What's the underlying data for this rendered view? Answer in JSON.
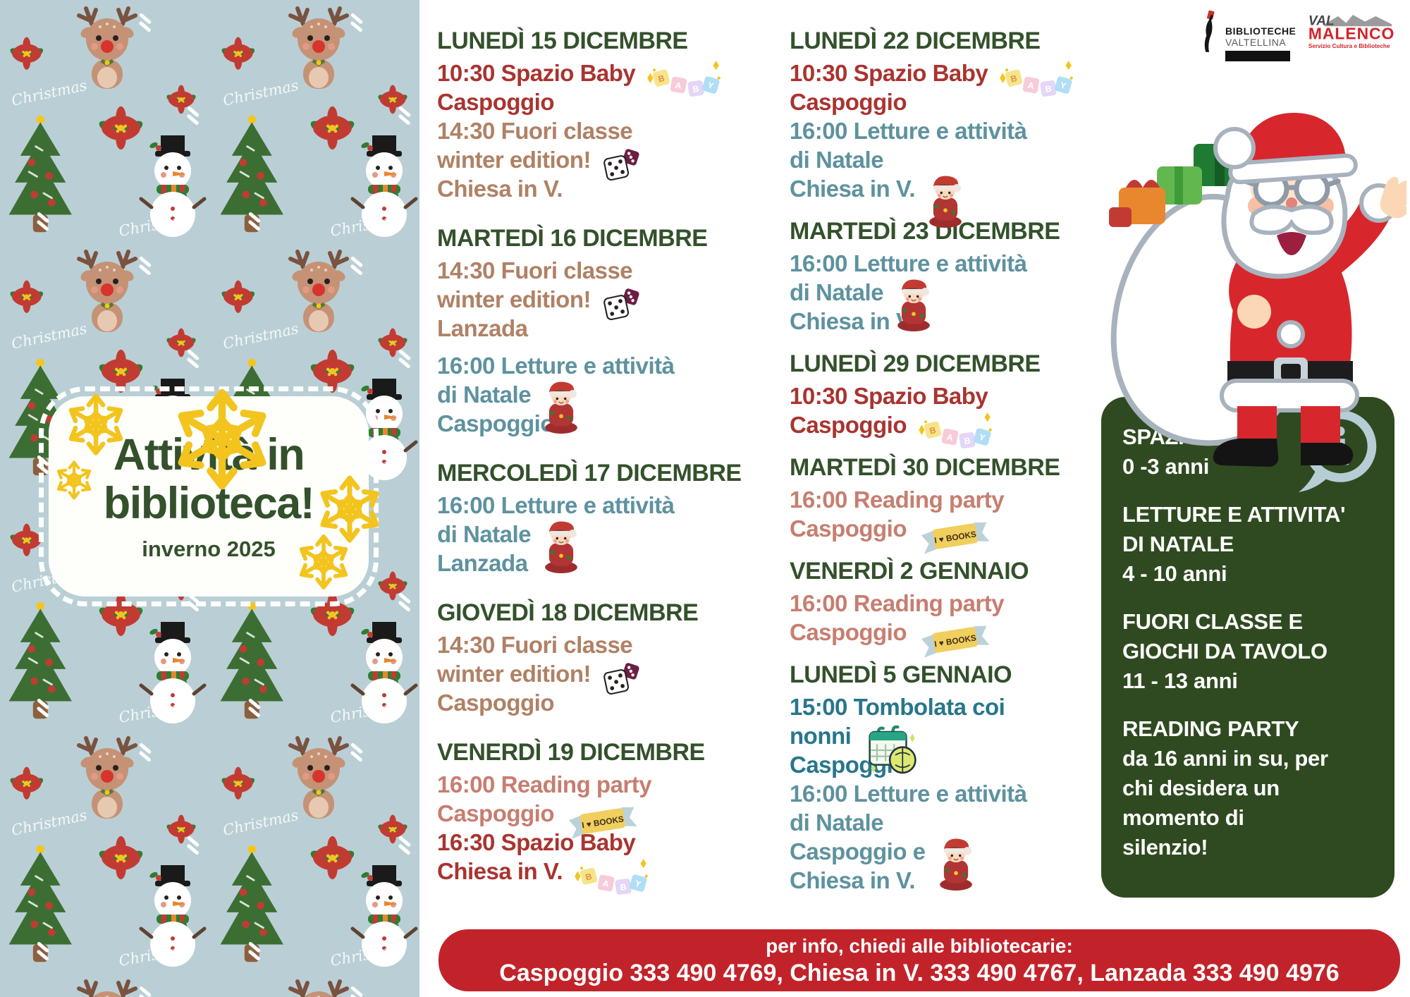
{
  "colors": {
    "accent_green": "#33512b",
    "accent_red": "#a93430",
    "accent_brown": "#b08165",
    "accent_salmon": "#c77e70",
    "teal_light": "#5e929f",
    "teal_dark": "#28768c",
    "box_green": "#2f4a20",
    "bar_red": "#c2232a",
    "panel_blue": "#b9cfd5",
    "snowflake_yellow": "#f2c41d",
    "info_icon_blue": "#b6cdd5"
  },
  "left_panel": {
    "title_line1": "Attività in",
    "title_line2": "biblioteca!",
    "subtitle": "inverno 2025",
    "pattern_text": "Christmas"
  },
  "header_logos": {
    "biblioteche": {
      "line1": "BIBLIOTECHE",
      "line2": "VALTELLINA"
    },
    "valmalenco": {
      "word1": "VAL",
      "word2": "MALENCO",
      "subtitle": "Servizio Cultura e Biblioteche"
    }
  },
  "icon_labels": {
    "baby_letters": "BABY",
    "books_banner_label": "I ♥ BOOKS",
    "info_letter": "i"
  },
  "schedule_columns": [
    {
      "events": [
        {
          "day": "LUNEDÌ 15 DICEMBRE",
          "lines": [
            {
              "text": "10:30 Spazio Baby",
              "color": "red",
              "icon": "baby-blocks-icon"
            },
            {
              "text": "Caspoggio",
              "color": "red"
            },
            {
              "text": "14:30 Fuori classe",
              "color": "brown"
            },
            {
              "text": "winter edition!",
              "color": "brown",
              "icon": "dice-icon"
            },
            {
              "text": "Chiesa in V.",
              "color": "brown"
            }
          ]
        },
        {
          "day": "MARTEDÌ 16 DICEMBRE",
          "lines": [
            {
              "text": "14:30 Fuori classe",
              "color": "brown"
            },
            {
              "text": "winter edition!",
              "color": "brown",
              "icon": "dice-icon"
            },
            {
              "text": "Lanzada",
              "color": "brown"
            },
            {
              "text": "16:00 Letture e attività",
              "color": "teal",
              "gap_before": true
            },
            {
              "text": "di Natale",
              "color": "teal",
              "icon": "elf-doll-icon"
            },
            {
              "text": "Caspoggio",
              "color": "teal"
            }
          ]
        },
        {
          "day": "MERCOLEDÌ 17 DICEMBRE",
          "lines": [
            {
              "text": "16:00 Letture e attività",
              "color": "teal"
            },
            {
              "text": "di Natale",
              "color": "teal",
              "icon": "elf-doll-icon"
            },
            {
              "text": "Lanzada",
              "color": "teal"
            }
          ]
        },
        {
          "day": "GIOVEDÌ 18 DICEMBRE",
          "lines": [
            {
              "text": "14:30 Fuori classe",
              "color": "brown"
            },
            {
              "text": "winter edition!",
              "color": "brown",
              "icon": "dice-icon"
            },
            {
              "text": "Caspoggio",
              "color": "brown"
            }
          ]
        },
        {
          "day": "VENERDÌ 19 DICEMBRE",
          "lines": [
            {
              "text": "16:00 Reading party",
              "color": "salmon"
            },
            {
              "text": "Caspoggio",
              "color": "salmon",
              "icon": "i-love-books-banner-icon"
            },
            {
              "text": "16:30 Spazio Baby",
              "color": "red"
            },
            {
              "text": "Chiesa in V.",
              "color": "red",
              "icon": "baby-blocks-icon"
            }
          ]
        }
      ]
    },
    {
      "events": [
        {
          "day": "LUNEDÌ 22 DICEMBRE",
          "lines": [
            {
              "text": "10:30 Spazio Baby",
              "color": "red",
              "icon": "baby-blocks-icon"
            },
            {
              "text": "Caspoggio",
              "color": "red"
            },
            {
              "text": "16:00 Letture e attività",
              "color": "teal"
            },
            {
              "text": "di Natale",
              "color": "teal"
            },
            {
              "text": "Chiesa in V.",
              "color": "teal",
              "icon": "elf-doll-icon"
            }
          ]
        },
        {
          "day": "MARTEDÌ 23 DICEMBRE",
          "lines": [
            {
              "text": "16:00 Letture e attività",
              "color": "teal"
            },
            {
              "text": "di Natale",
              "color": "teal",
              "icon": "elf-doll-icon"
            },
            {
              "text": "Chiesa in V.",
              "color": "teal"
            }
          ]
        },
        {
          "day": "LUNEDÌ 29 DICEMBRE",
          "lines": [
            {
              "text": "10:30 Spazio Baby",
              "color": "red"
            },
            {
              "text": "Caspoggio",
              "color": "red",
              "icon": "baby-blocks-icon"
            }
          ]
        },
        {
          "day": "MARTEDÌ 30 DICEMBRE",
          "lines": [
            {
              "text": "16:00 Reading party",
              "color": "salmon"
            },
            {
              "text": "Caspoggio",
              "color": "salmon",
              "icon": "i-love-books-banner-icon"
            }
          ]
        },
        {
          "day": "VENERDÌ 2 GENNAIO",
          "lines": [
            {
              "text": "16:00 Reading party",
              "color": "salmon"
            },
            {
              "text": "Caspoggio",
              "color": "salmon",
              "icon": "i-love-books-banner-icon"
            }
          ]
        },
        {
          "day": "LUNEDÌ 5 GENNAIO",
          "lines": [
            {
              "text": "15:00 Tombolata coi",
              "color": "teal-dark"
            },
            {
              "text": "nonni",
              "color": "teal-dark",
              "icon": "tombola-icon"
            },
            {
              "text": "Caspoggio",
              "color": "teal-dark"
            },
            {
              "text": "16:00 Letture e attività",
              "color": "teal"
            },
            {
              "text": "di Natale",
              "color": "teal"
            },
            {
              "text": "Caspoggio e",
              "color": "teal",
              "icon": "elf-doll-icon"
            },
            {
              "text": "Chiesa in V.",
              "color": "teal"
            }
          ]
        }
      ]
    }
  ],
  "info_box": {
    "info_icon": "info-speech-bubble-icon",
    "sections": [
      {
        "lines": [
          "SPAZIO BABY",
          "0 -3 anni"
        ]
      },
      {
        "lines": [
          "LETTURE E ATTIVITA'",
          "DI NATALE",
          "4 - 10 anni"
        ]
      },
      {
        "lines": [
          "FUORI CLASSE E",
          "GIOCHI DA TAVOLO",
          "11 - 13 anni"
        ]
      },
      {
        "lines": [
          "READING PARTY",
          "da 16 anni in su, per",
          "chi desidera un",
          "momento di",
          "silenzio!"
        ]
      }
    ]
  },
  "footer": {
    "line1": "per info, chiedi alle bibliotecarie:",
    "line2": "Caspoggio 333 490 4769, Chiesa in V. 333 490 4767, Lanzada 333 490 4976"
  }
}
